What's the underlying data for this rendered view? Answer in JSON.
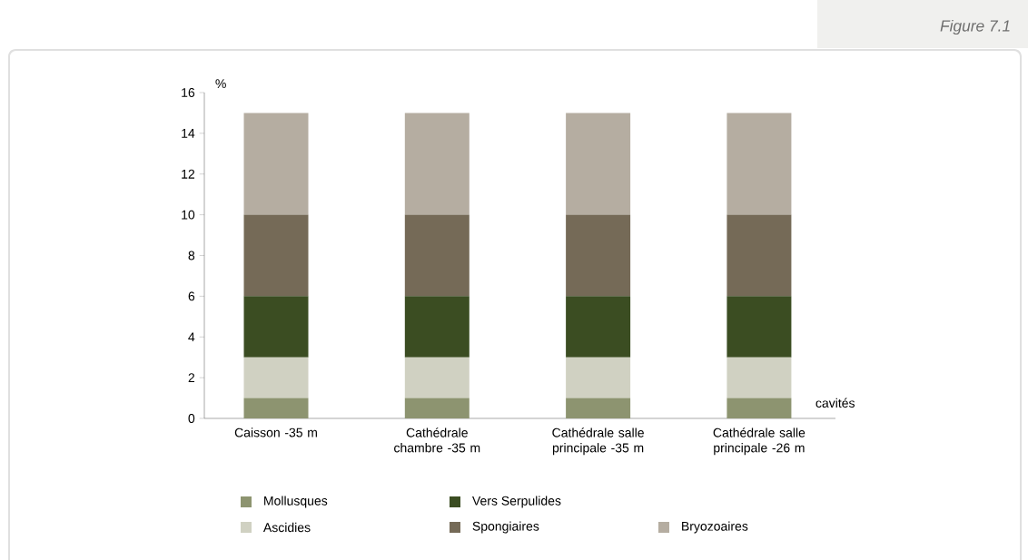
{
  "chart_data": {
    "type": "bar",
    "stacked": true,
    "title": "Figure 7.1",
    "ylabel": "%",
    "xlabel": "cavités",
    "categories": [
      "Caisson -35 m",
      "Cathédrale chambre -35 m",
      "Cathédrale salle principale -35 m",
      "Cathédrale salle principale -26 m"
    ],
    "series": [
      {
        "name": "Mollusques",
        "color": "#8d9470",
        "values": [
          1,
          1,
          1,
          1
        ]
      },
      {
        "name": "Ascidies",
        "color": "#d0d1c2",
        "values": [
          2,
          2,
          2,
          2
        ]
      },
      {
        "name": "Vers Serpulides",
        "color": "#3b4d22",
        "values": [
          3,
          3,
          3,
          3
        ]
      },
      {
        "name": "Spongiaires",
        "color": "#756a57",
        "values": [
          4,
          4,
          4,
          4
        ]
      },
      {
        "name": "Bryozoaires",
        "color": "#b5ada1",
        "values": [
          5,
          5,
          5,
          5
        ]
      }
    ],
    "ylim": [
      0,
      16
    ],
    "yticks": [
      0,
      2,
      4,
      6,
      8,
      10,
      12,
      14,
      16
    ],
    "legend": "bottom"
  }
}
